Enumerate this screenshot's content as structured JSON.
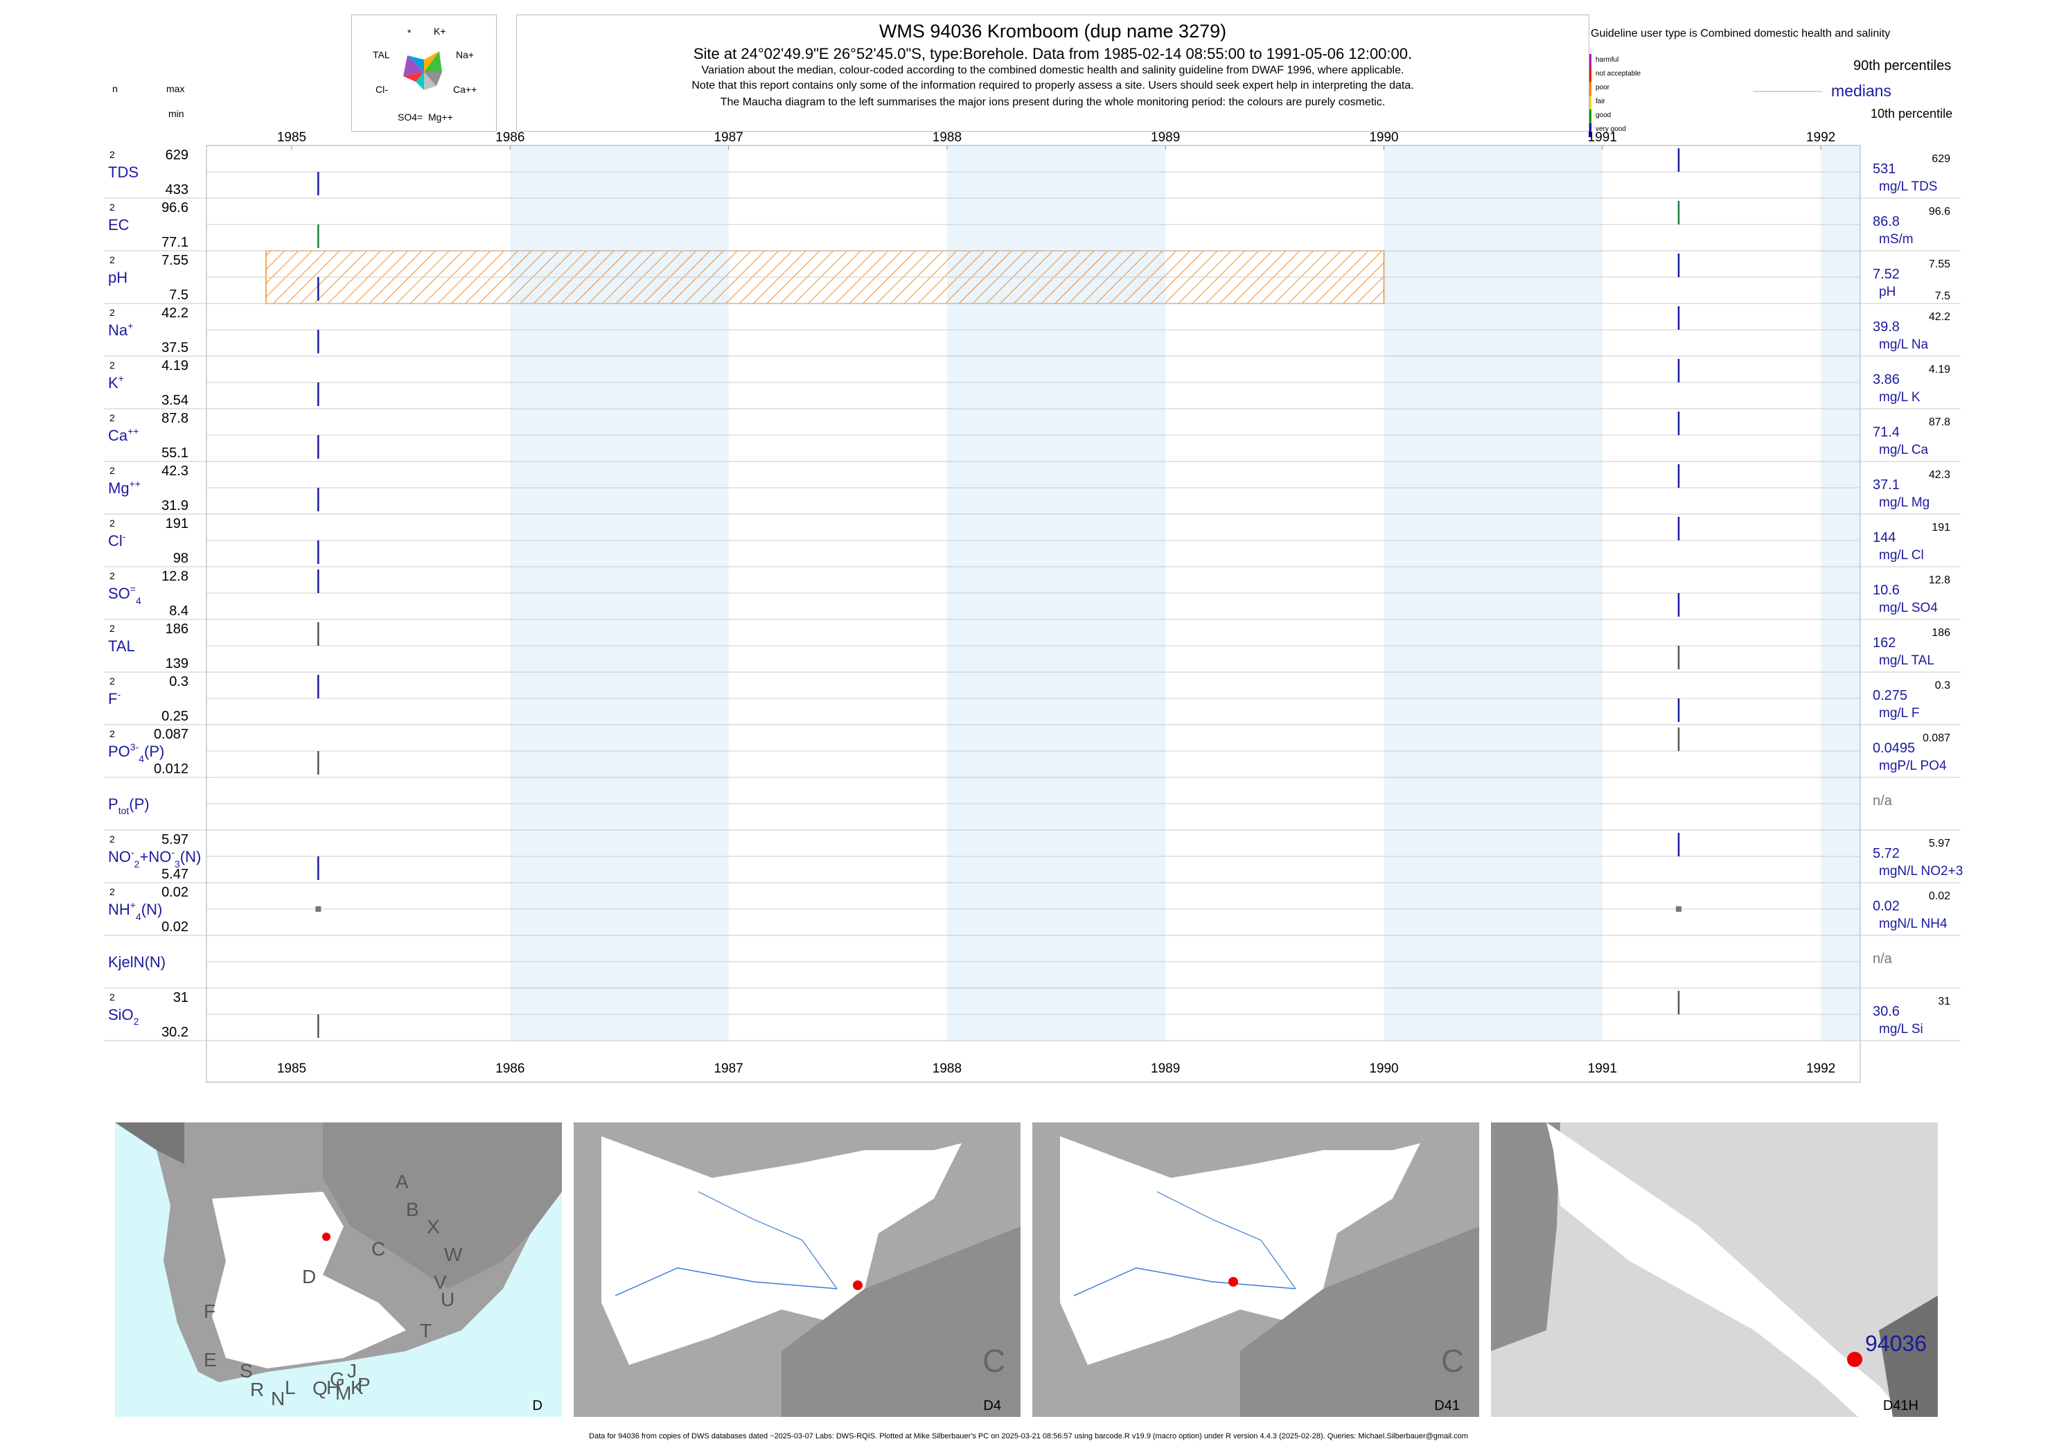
{
  "header": {
    "title": "WMS 94036  Kromboom (dup name 3279)",
    "subtitle": "Site at 24°02'49.9\"E 26°52'45.0\"S, type:Borehole.  Data from 1985-02-14 08:55:00 to 1991-05-06 12:00:00.",
    "note1": "Variation about the median,  colour-coded according to the combined domestic health and salinity guideline from DWAF 1996, where applicable.",
    "note2": "Note that this report contains only some of the information required to properly assess a site. Users should seek expert help in interpreting the data.",
    "note3": "The Maucha diagram to the left summarises the major ions present during the whole monitoring period: the colours are purely cosmetic.",
    "col_n": "n",
    "col_max": "max",
    "col_min": "min"
  },
  "maucha": {
    "labels": [
      "*",
      "K+",
      "TAL",
      "Na+",
      "Cl-",
      "Ca++",
      "SO4=",
      "Mg++"
    ],
    "colors": [
      "#00a0e0",
      "#ffb000",
      "#a050c0",
      "#40c040",
      "#ff3030",
      "#909090",
      "#00d0d0",
      "#c0c0c0"
    ]
  },
  "legend": {
    "guideline": "Guideline user type is Combined domestic health and salinity",
    "classes": [
      "harmful",
      "not acceptable",
      "poor",
      "fair",
      "good",
      "very good"
    ],
    "class_colors": [
      "#c000c0",
      "#ff0000",
      "#ff8000",
      "#ffd000",
      "#00a000",
      "#0000a0"
    ],
    "p90": "90th percentiles",
    "median": "medians",
    "p10": "10th percentile"
  },
  "chart_data": {
    "type": "strip",
    "x_axis": {
      "ticks": [
        "1985",
        "1986",
        "1987",
        "1988",
        "1989",
        "1990",
        "1991",
        "1992"
      ],
      "range": [
        "1984-10",
        "1992-05"
      ]
    },
    "sample_dates": [
      "1985-02-14",
      "1991-05-06"
    ],
    "guideline_band": {
      "variable": "pH",
      "from": "1985",
      "to": "1990",
      "color": "#f08c28"
    },
    "variables": [
      {
        "name": "TDS",
        "n": "2",
        "max": "629",
        "min": "433",
        "median": "531",
        "unit": "mg/L TDS",
        "p90": "629",
        "samples": [
          433,
          629
        ],
        "color": "#1a1aa0"
      },
      {
        "name": "EC",
        "n": "2",
        "max": "96.6",
        "min": "77.1",
        "median": "86.8",
        "unit": "mS/m",
        "p90": "96.6",
        "samples": [
          77.1,
          96.6
        ],
        "color": "#1a8040"
      },
      {
        "name": "pH",
        "n": "2",
        "max": "7.55",
        "min": "7.5",
        "median": "7.52",
        "unit": "pH",
        "p90": "7.55",
        "p10": "7.5",
        "samples": [
          7.5,
          7.55
        ],
        "color": "#1a1aa0"
      },
      {
        "name": "Na",
        "sup": "+",
        "n": "2",
        "max": "42.2",
        "min": "37.5",
        "median": "39.8",
        "unit": "mg/L Na",
        "p90": "42.2",
        "samples": [
          37.5,
          42.2
        ],
        "color": "#1a1aa0"
      },
      {
        "name": "K",
        "sup": "+",
        "n": "2",
        "max": "4.19",
        "min": "3.54",
        "median": "3.86",
        "unit": "mg/L K",
        "p90": "4.19",
        "samples": [
          3.54,
          4.19
        ],
        "color": "#1a1aa0"
      },
      {
        "name": "Ca",
        "sup": "++",
        "n": "2",
        "max": "87.8",
        "min": "55.1",
        "median": "71.4",
        "unit": "mg/L Ca",
        "p90": "87.8",
        "samples": [
          55.1,
          87.8
        ],
        "color": "#1a1aa0"
      },
      {
        "name": "Mg",
        "sup": "++",
        "n": "2",
        "max": "42.3",
        "min": "31.9",
        "median": "37.1",
        "unit": "mg/L Mg",
        "p90": "42.3",
        "samples": [
          31.9,
          42.3
        ],
        "color": "#1a1aa0"
      },
      {
        "name": "Cl",
        "sup": "-",
        "n": "2",
        "max": "191",
        "min": "98",
        "median": "144",
        "unit": "mg/L Cl",
        "p90": "191",
        "samples": [
          98,
          191
        ],
        "color": "#1a1aa0"
      },
      {
        "name": "SO",
        "sub": "4",
        "sup": "=",
        "n": "2",
        "max": "12.8",
        "min": "8.4",
        "median": "10.6",
        "unit": "mg/L SO4",
        "p90": "12.8",
        "samples": [
          12.8,
          8.4
        ],
        "color": "#1a1aa0"
      },
      {
        "name": "TAL",
        "n": "2",
        "max": "186",
        "min": "139",
        "median": "162",
        "unit": "mg/L TAL",
        "p90": "186",
        "samples": [
          186,
          139
        ],
        "color": "#555555"
      },
      {
        "name": "F",
        "sup": "-",
        "n": "2",
        "max": "0.3",
        "min": "0.25",
        "median": "0.275",
        "unit": "mg/L F",
        "p90": "0.3",
        "samples": [
          0.3,
          0.25
        ],
        "color": "#1a1aa0"
      },
      {
        "name": "PO",
        "sub": "4",
        "sup": "3-",
        "suffix": "(P)",
        "n": "2",
        "max": "0.087",
        "min": "0.012",
        "median": "0.0495",
        "unit": "mgP/L PO4",
        "p90": "0.087",
        "samples": [
          0.012,
          0.087
        ],
        "color": "#555555"
      },
      {
        "name": "P",
        "sub": "tot",
        "suffix": "(P)",
        "n": "",
        "max": "",
        "min": "",
        "median": "n/a",
        "unit": "",
        "p90": "",
        "samples": [],
        "color": "#555555"
      },
      {
        "name": "NO",
        "sub": "2",
        "sup": "-",
        "suffix": "+NO",
        "sub2": "3",
        "sup2": "-",
        "suffix2": "(N)",
        "n": "2",
        "max": "5.97",
        "min": "5.47",
        "median": "5.72",
        "unit": "mgN/L NO2+3",
        "p90": "5.97",
        "samples": [
          5.47,
          5.97
        ],
        "color": "#1a1aa0"
      },
      {
        "name": "NH",
        "sub": "4",
        "sup": "+",
        "suffix": "(N)",
        "n": "2",
        "max": "0.02",
        "min": "0.02",
        "median": "0.02",
        "unit": "mgN/L NH4",
        "p90": "0.02",
        "samples": [
          0.02,
          0.02
        ],
        "color": "#555555"
      },
      {
        "name": "KjelN(N)",
        "n": "",
        "max": "",
        "min": "",
        "median": "n/a",
        "unit": "",
        "p90": "",
        "samples": [],
        "color": "#555555"
      },
      {
        "name": "SiO",
        "sub": "2",
        "n": "2",
        "max": "31",
        "min": "30.2",
        "median": "30.6",
        "unit": "mg/L Si",
        "p90": "31",
        "samples": [
          30.2,
          31
        ],
        "color": "#555555"
      }
    ]
  },
  "maps": [
    {
      "label": "D",
      "letters": [
        "A",
        "B",
        "X",
        "W",
        "C",
        "V",
        "U",
        "D",
        "T",
        "F",
        "E",
        "S",
        "R",
        "L",
        "N",
        "Q",
        "G",
        "H",
        "J",
        "K",
        "M",
        "P"
      ]
    },
    {
      "label": "D4",
      "letters": [
        "C"
      ]
    },
    {
      "label": "D41",
      "letters": [
        "C"
      ]
    },
    {
      "label": "D41H",
      "site": "94036"
    }
  ],
  "footer": "Data for 94036 from copies of DWS databases dated ~2025-03-07 Labs: DWS-RQIS. Plotted at Mike Silberbauer's PC on 2025-03-21 08:56:57 using barcode.R v19.9 (macro option) under R version 4.4.3 (2025-02-28). Queries: Michael.Silberbauer@gmail.com"
}
